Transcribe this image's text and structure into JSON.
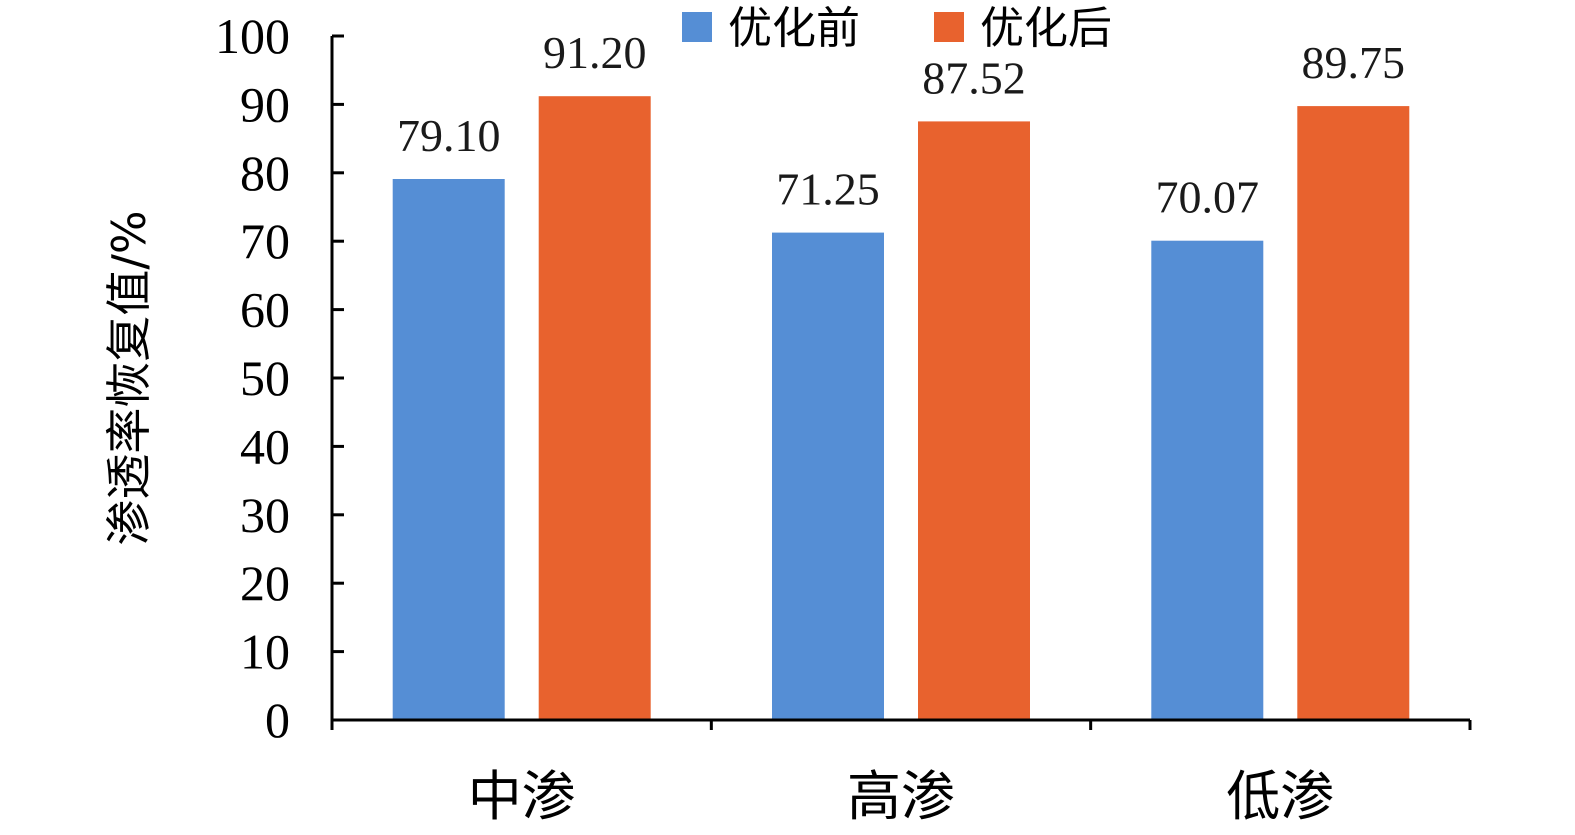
{
  "chart_data": {
    "type": "bar",
    "categories": [
      "中渗",
      "高渗",
      "低渗"
    ],
    "series": [
      {
        "name": "优化前",
        "color": "#558ED5",
        "values": [
          79.1,
          71.25,
          70.07
        ],
        "labels": [
          "79.10",
          "71.25",
          "70.07"
        ]
      },
      {
        "name": "优化后",
        "color": "#E8622E",
        "values": [
          91.2,
          87.52,
          89.75
        ],
        "labels": [
          "91.20",
          "87.52",
          "89.75"
        ]
      }
    ],
    "title": "",
    "xlabel": "",
    "ylabel": "渗透率恢复值/%",
    "ylim": [
      0,
      100
    ],
    "yticks": [
      0,
      10,
      20,
      30,
      40,
      50,
      60,
      70,
      80,
      90,
      100
    ],
    "grid": false,
    "legend_position": "top"
  }
}
